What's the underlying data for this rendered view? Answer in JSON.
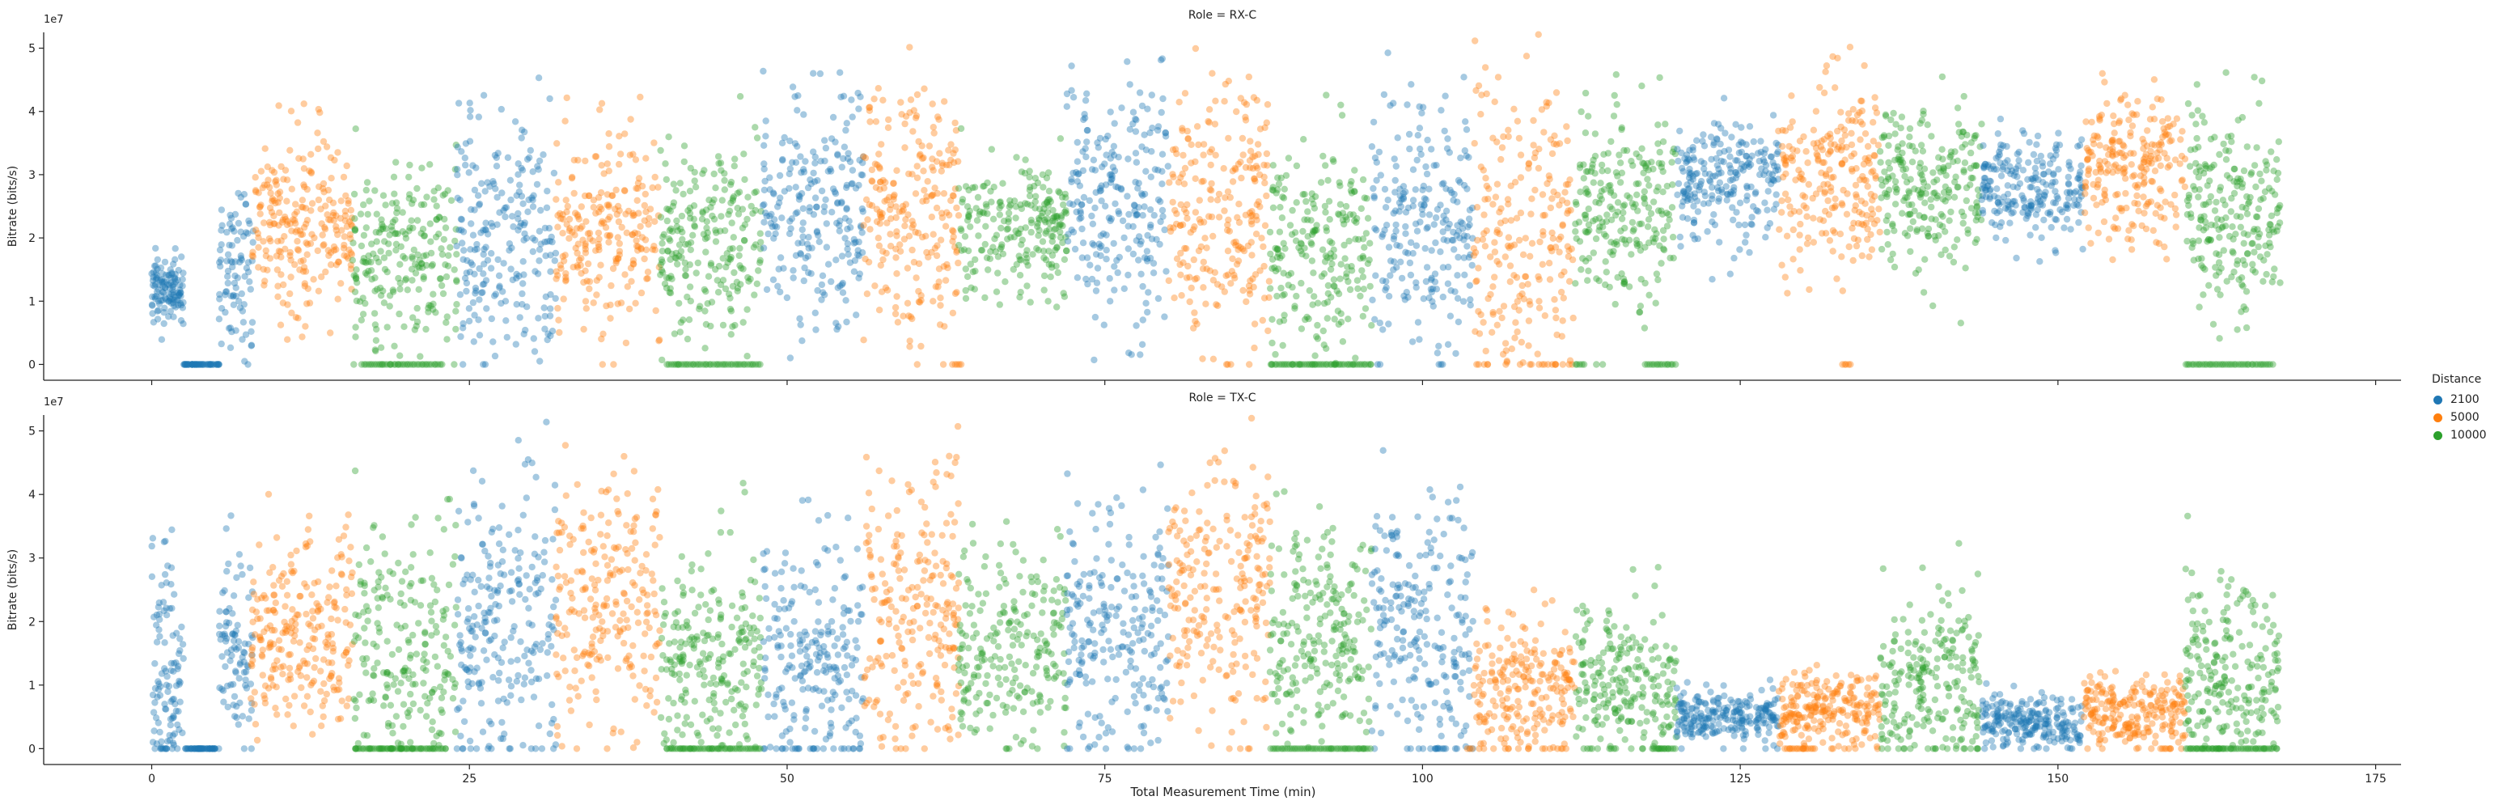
{
  "chart_data": {
    "type": "scatter",
    "xlabel": "Total Measurement Time (min)",
    "ylabel": "Bitrate (bits/s)",
    "y_scale_label": "1e7",
    "xlim": [
      -8.5,
      177
    ],
    "ylim": [
      -2500000,
      52500000
    ],
    "x_ticks": [
      0,
      25,
      50,
      75,
      100,
      125,
      150,
      175
    ],
    "y_ticks": [
      0,
      10000000,
      20000000,
      30000000,
      40000000,
      50000000
    ],
    "y_tick_labels": [
      "0",
      "1",
      "2",
      "3",
      "4",
      "5"
    ],
    "grid": false,
    "legend": {
      "title": "Distance",
      "placement": "right",
      "entries": [
        {
          "label": "2100",
          "color": "#1f77b4"
        },
        {
          "label": "5000",
          "color": "#ff7f0e"
        },
        {
          "label": "10000",
          "color": "#2ca02c"
        }
      ]
    },
    "point_opacity": 0.4,
    "panels": [
      {
        "title": "Role = RX-C",
        "segments": [
          {
            "distance": "2100",
            "x0": 0.0,
            "x1": 2.5,
            "mean": 12000000,
            "sd": 2500000,
            "n": 120
          },
          {
            "distance": "2100",
            "x0": 2.5,
            "x1": 5.3,
            "mean": 0,
            "sd": 0,
            "n": 50
          },
          {
            "distance": "2100",
            "x0": 5.3,
            "x1": 8.0,
            "mean": 15000000,
            "sd": 8000000,
            "n": 90
          },
          {
            "distance": "5000",
            "x0": 7.8,
            "x1": 15.8,
            "mean": 22000000,
            "sd": 7000000,
            "n": 240
          },
          {
            "distance": "10000",
            "x0": 15.8,
            "x1": 24.0,
            "mean": 17000000,
            "sd": 8000000,
            "n": 230
          },
          {
            "distance": "2100",
            "x0": 24.0,
            "x1": 31.8,
            "mean": 20000000,
            "sd": 10000000,
            "n": 230
          },
          {
            "distance": "5000",
            "x0": 31.8,
            "x1": 40.0,
            "mean": 21000000,
            "sd": 7500000,
            "n": 230
          },
          {
            "distance": "10000",
            "x0": 40.0,
            "x1": 48.0,
            "mean": 19000000,
            "sd": 8000000,
            "n": 230
          },
          {
            "distance": "2100",
            "x0": 48.0,
            "x1": 56.0,
            "mean": 26000000,
            "sd": 9000000,
            "n": 230
          },
          {
            "distance": "5000",
            "x0": 56.0,
            "x1": 63.5,
            "mean": 24000000,
            "sd": 10000000,
            "n": 230
          },
          {
            "distance": "10000",
            "x0": 63.5,
            "x1": 72.0,
            "mean": 22000000,
            "sd": 5000000,
            "n": 230
          },
          {
            "distance": "2100",
            "x0": 72.0,
            "x1": 80.0,
            "mean": 26000000,
            "sd": 9000000,
            "n": 230
          },
          {
            "distance": "5000",
            "x0": 80.0,
            "x1": 88.0,
            "mean": 24000000,
            "sd": 10000000,
            "n": 230
          },
          {
            "distance": "10000",
            "x0": 88.0,
            "x1": 96.0,
            "mean": 18000000,
            "sd": 9000000,
            "n": 230
          },
          {
            "distance": "2100",
            "x0": 96.0,
            "x1": 104.0,
            "mean": 22000000,
            "sd": 10000000,
            "n": 230
          },
          {
            "distance": "5000",
            "x0": 104.0,
            "x1": 112.0,
            "mean": 18000000,
            "sd": 12000000,
            "n": 230
          },
          {
            "distance": "10000",
            "x0": 112.0,
            "x1": 120.0,
            "mean": 25000000,
            "sd": 8000000,
            "n": 230
          },
          {
            "distance": "2100",
            "x0": 120.0,
            "x1": 128.0,
            "mean": 29000000,
            "sd": 5000000,
            "n": 230
          },
          {
            "distance": "5000",
            "x0": 128.0,
            "x1": 136.0,
            "mean": 30000000,
            "sd": 8000000,
            "n": 230
          },
          {
            "distance": "10000",
            "x0": 136.0,
            "x1": 144.0,
            "mean": 28000000,
            "sd": 6000000,
            "n": 230
          },
          {
            "distance": "2100",
            "x0": 144.0,
            "x1": 152.0,
            "mean": 28000000,
            "sd": 4000000,
            "n": 230
          },
          {
            "distance": "5000",
            "x0": 152.0,
            "x1": 160.0,
            "mean": 31000000,
            "sd": 6000000,
            "n": 230
          },
          {
            "distance": "10000",
            "x0": 160.0,
            "x1": 167.5,
            "mean": 24000000,
            "sd": 8000000,
            "n": 230
          }
        ],
        "zero_runs": [
          {
            "distance": "10000",
            "x0": 16.5,
            "x1": 23.0
          },
          {
            "distance": "10000",
            "x0": 40.5,
            "x1": 48.0
          },
          {
            "distance": "10000",
            "x0": 88.0,
            "x1": 96.0
          },
          {
            "distance": "10000",
            "x0": 112.0,
            "x1": 112.8
          },
          {
            "distance": "10000",
            "x0": 117.5,
            "x1": 120.0
          },
          {
            "distance": "10000",
            "x0": 160.0,
            "x1": 167.0
          },
          {
            "distance": "5000",
            "x0": 63.0,
            "x1": 63.8
          },
          {
            "distance": "5000",
            "x0": 84.5,
            "x1": 85.0
          },
          {
            "distance": "5000",
            "x0": 133.0,
            "x1": 133.8
          }
        ]
      },
      {
        "title": "Role = TX-C",
        "segments": [
          {
            "distance": "2100",
            "x0": 0.0,
            "x1": 2.5,
            "mean": 12000000,
            "sd": 9000000,
            "n": 110
          },
          {
            "distance": "2100",
            "x0": 2.5,
            "x1": 5.3,
            "mean": 0,
            "sd": 0,
            "n": 50
          },
          {
            "distance": "2100",
            "x0": 5.3,
            "x1": 8.0,
            "mean": 16000000,
            "sd": 8000000,
            "n": 90
          },
          {
            "distance": "5000",
            "x0": 7.8,
            "x1": 15.8,
            "mean": 18000000,
            "sd": 8000000,
            "n": 240
          },
          {
            "distance": "10000",
            "x0": 15.8,
            "x1": 24.0,
            "mean": 14000000,
            "sd": 11000000,
            "n": 230
          },
          {
            "distance": "2100",
            "x0": 24.0,
            "x1": 31.8,
            "mean": 20000000,
            "sd": 11000000,
            "n": 230
          },
          {
            "distance": "5000",
            "x0": 31.8,
            "x1": 40.0,
            "mean": 22000000,
            "sd": 11000000,
            "n": 230
          },
          {
            "distance": "10000",
            "x0": 40.0,
            "x1": 48.0,
            "mean": 12000000,
            "sd": 9000000,
            "n": 230
          },
          {
            "distance": "2100",
            "x0": 48.0,
            "x1": 56.0,
            "mean": 14000000,
            "sd": 10000000,
            "n": 230
          },
          {
            "distance": "5000",
            "x0": 56.0,
            "x1": 63.5,
            "mean": 22000000,
            "sd": 11000000,
            "n": 230
          },
          {
            "distance": "10000",
            "x0": 63.5,
            "x1": 72.0,
            "mean": 16000000,
            "sd": 8000000,
            "n": 230
          },
          {
            "distance": "2100",
            "x0": 72.0,
            "x1": 80.0,
            "mean": 18000000,
            "sd": 11000000,
            "n": 230
          },
          {
            "distance": "5000",
            "x0": 80.0,
            "x1": 88.0,
            "mean": 24000000,
            "sd": 11000000,
            "n": 230
          },
          {
            "distance": "10000",
            "x0": 88.0,
            "x1": 96.0,
            "mean": 17000000,
            "sd": 9000000,
            "n": 230
          },
          {
            "distance": "2100",
            "x0": 96.0,
            "x1": 104.0,
            "mean": 18000000,
            "sd": 11000000,
            "n": 230
          },
          {
            "distance": "5000",
            "x0": 104.0,
            "x1": 112.0,
            "mean": 9000000,
            "sd": 6000000,
            "n": 230
          },
          {
            "distance": "10000",
            "x0": 112.0,
            "x1": 120.0,
            "mean": 9000000,
            "sd": 6000000,
            "n": 230
          },
          {
            "distance": "2100",
            "x0": 120.0,
            "x1": 128.0,
            "mean": 5000000,
            "sd": 2000000,
            "n": 230
          },
          {
            "distance": "5000",
            "x0": 128.0,
            "x1": 136.0,
            "mean": 6000000,
            "sd": 3000000,
            "n": 230
          },
          {
            "distance": "10000",
            "x0": 136.0,
            "x1": 144.0,
            "mean": 10000000,
            "sd": 7000000,
            "n": 230
          },
          {
            "distance": "2100",
            "x0": 144.0,
            "x1": 152.0,
            "mean": 4000000,
            "sd": 2000000,
            "n": 230
          },
          {
            "distance": "5000",
            "x0": 152.0,
            "x1": 160.0,
            "mean": 6000000,
            "sd": 3000000,
            "n": 230
          },
          {
            "distance": "10000",
            "x0": 160.0,
            "x1": 167.5,
            "mean": 10000000,
            "sd": 8000000,
            "n": 230
          }
        ],
        "zero_runs": [
          {
            "distance": "10000",
            "x0": 16.0,
            "x1": 23.0
          },
          {
            "distance": "10000",
            "x0": 40.5,
            "x1": 48.0
          },
          {
            "distance": "10000",
            "x0": 88.0,
            "x1": 96.0
          },
          {
            "distance": "10000",
            "x0": 118.0,
            "x1": 120.0
          },
          {
            "distance": "10000",
            "x0": 160.0,
            "x1": 167.0
          },
          {
            "distance": "2100",
            "x0": 101.0,
            "x1": 102.0
          },
          {
            "distance": "5000",
            "x0": 103.5,
            "x1": 104.0
          },
          {
            "distance": "5000",
            "x0": 128.5,
            "x1": 131.0
          },
          {
            "distance": "5000",
            "x0": 158.0,
            "x1": 159.0
          }
        ]
      }
    ]
  }
}
